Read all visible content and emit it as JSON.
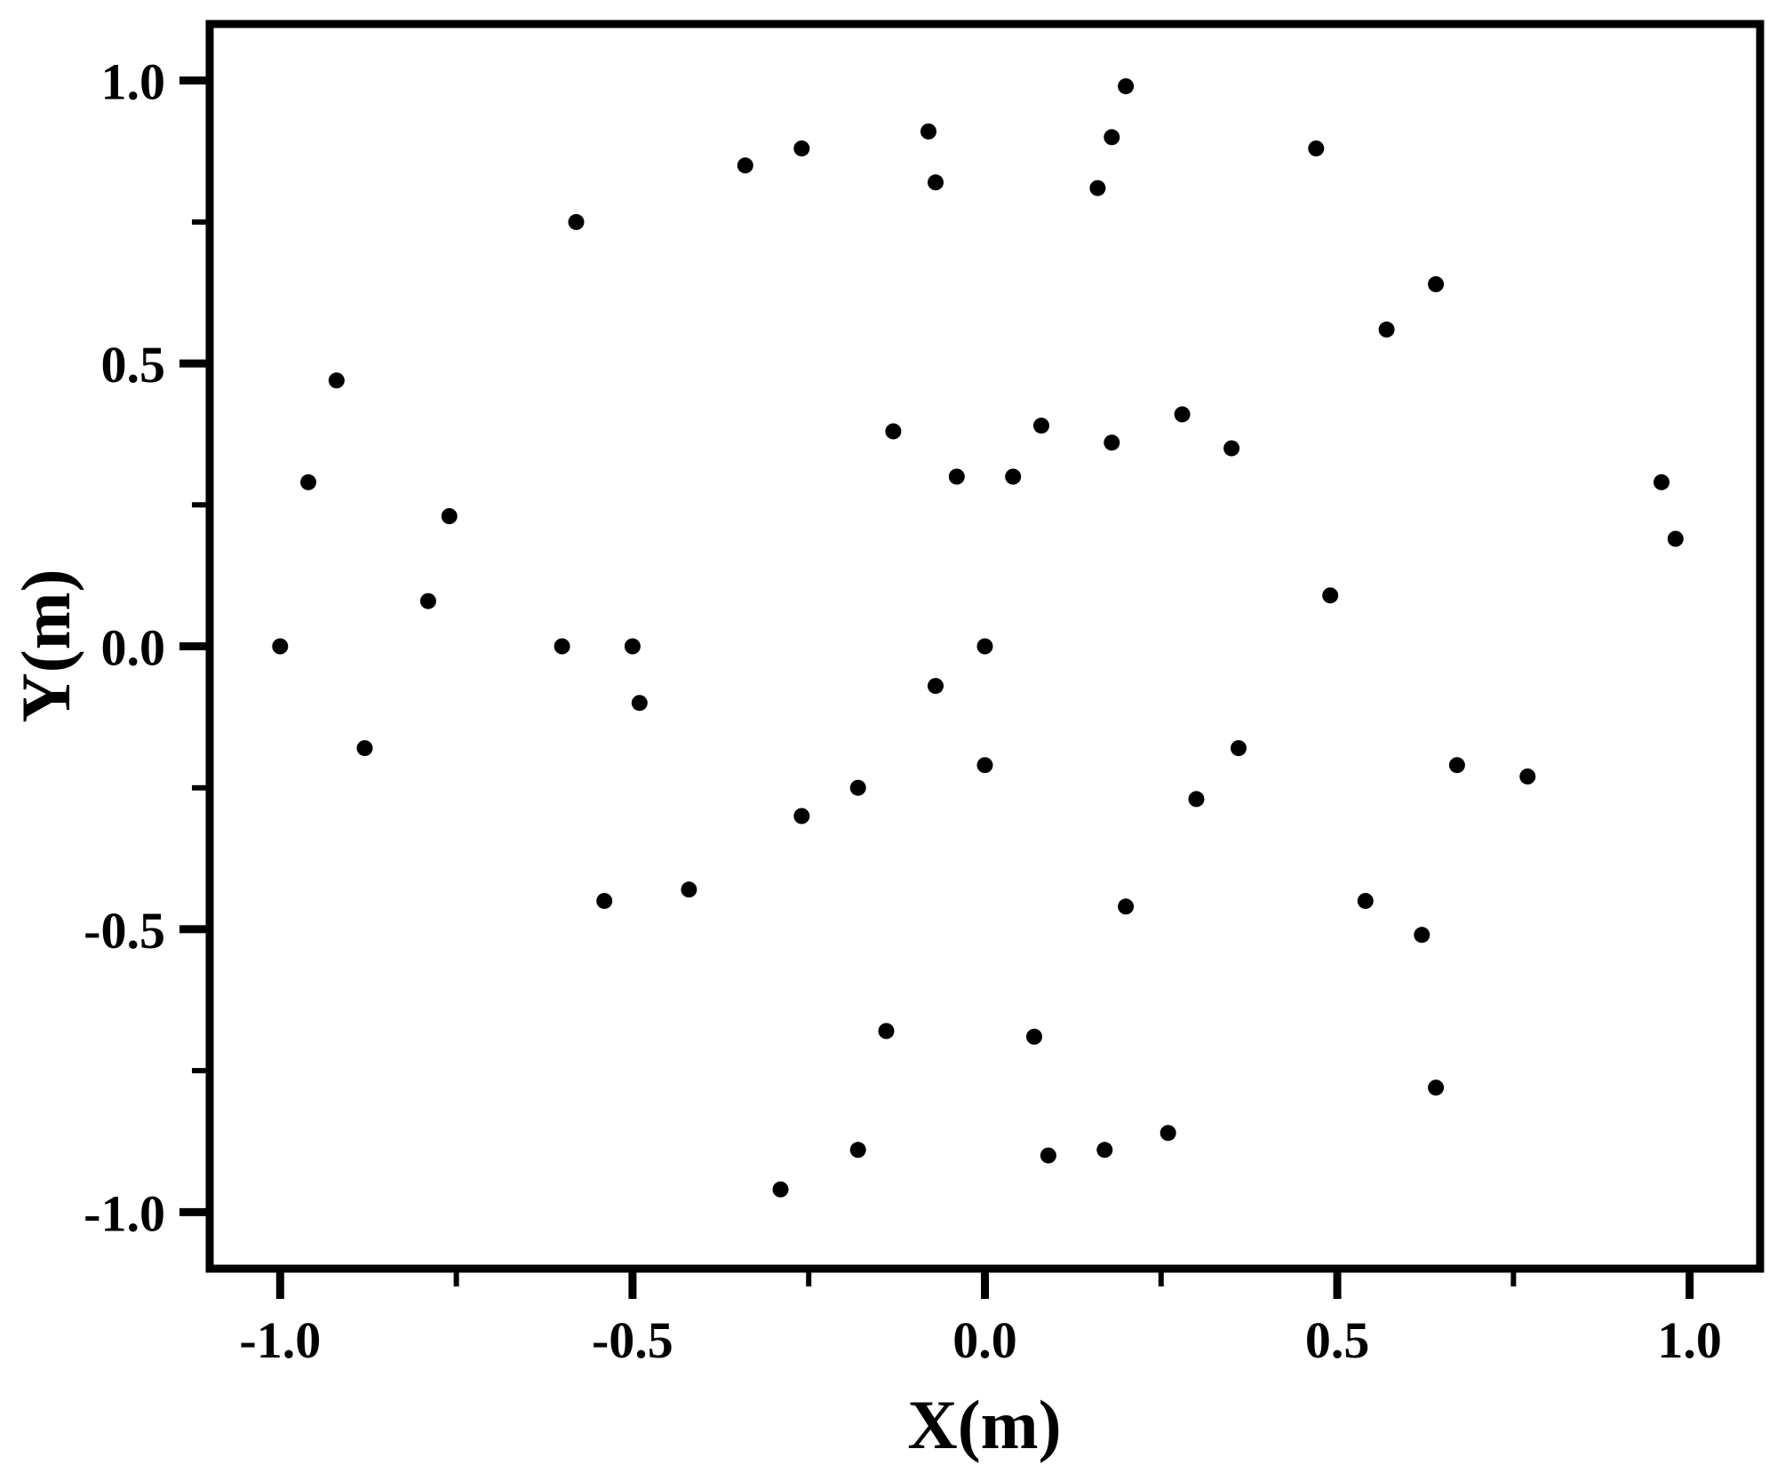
{
  "chart_data": {
    "type": "scatter",
    "title": "",
    "xlabel": "X(m)",
    "ylabel": "Y(m)",
    "xlim": [
      -1.1,
      1.1
    ],
    "ylim": [
      -1.1,
      1.1
    ],
    "grid": false,
    "legend": "none",
    "background_color": "#ffffff",
    "axis_color": "#000000",
    "x_major_ticks": [
      -1.0,
      -0.5,
      0.0,
      0.5,
      1.0
    ],
    "x_minor_ticks": [
      -0.75,
      -0.25,
      0.25,
      0.75
    ],
    "x_tick_labels": [
      "-1.0",
      "-0.5",
      "0.0",
      "0.5",
      "1.0"
    ],
    "y_major_ticks": [
      1.0,
      0.5,
      0.0,
      -0.5,
      -1.0
    ],
    "y_minor_ticks": [
      0.75,
      0.25,
      -0.25,
      -0.75
    ],
    "y_tick_labels": [
      "1.0",
      "0.5",
      "0.0",
      "-0.5",
      "-1.0"
    ],
    "marker": {
      "shape": "circle",
      "color": "#000000",
      "radius_px": 9
    },
    "points": [
      [
        -0.58,
        0.75
      ],
      [
        -0.92,
        0.47
      ],
      [
        0.2,
        0.99
      ],
      [
        -0.08,
        0.91
      ],
      [
        0.18,
        0.9
      ],
      [
        -0.26,
        0.88
      ],
      [
        -0.34,
        0.85
      ],
      [
        -0.07,
        0.82
      ],
      [
        0.16,
        0.81
      ],
      [
        0.47,
        0.88
      ],
      [
        0.64,
        0.64
      ],
      [
        0.57,
        0.56
      ],
      [
        -0.96,
        0.29
      ],
      [
        -0.76,
        0.23
      ],
      [
        -0.79,
        0.08
      ],
      [
        -1.0,
        0.0
      ],
      [
        -0.6,
        0.0
      ],
      [
        -0.5,
        0.0
      ],
      [
        -0.49,
        -0.1
      ],
      [
        -0.88,
        -0.18
      ],
      [
        -0.13,
        0.38
      ],
      [
        -0.04,
        0.3
      ],
      [
        0.04,
        0.3
      ],
      [
        0.0,
        0.0
      ],
      [
        -0.07,
        -0.07
      ],
      [
        0.0,
        -0.21
      ],
      [
        -0.18,
        -0.25
      ],
      [
        -0.26,
        -0.3
      ],
      [
        0.3,
        -0.27
      ],
      [
        0.08,
        0.39
      ],
      [
        0.18,
        0.36
      ],
      [
        0.28,
        0.41
      ],
      [
        0.35,
        0.35
      ],
      [
        0.96,
        0.29
      ],
      [
        0.98,
        0.19
      ],
      [
        0.49,
        0.09
      ],
      [
        0.36,
        -0.18
      ],
      [
        0.67,
        -0.21
      ],
      [
        0.77,
        -0.23
      ],
      [
        -0.54,
        -0.45
      ],
      [
        -0.42,
        -0.43
      ],
      [
        0.2,
        -0.46
      ],
      [
        -0.14,
        -0.68
      ],
      [
        0.07,
        -0.69
      ],
      [
        -0.18,
        -0.89
      ],
      [
        0.09,
        -0.9
      ],
      [
        0.17,
        -0.89
      ],
      [
        0.26,
        -0.86
      ],
      [
        -0.29,
        -0.96
      ],
      [
        0.54,
        -0.45
      ],
      [
        0.62,
        -0.51
      ],
      [
        0.64,
        -0.78
      ]
    ]
  }
}
